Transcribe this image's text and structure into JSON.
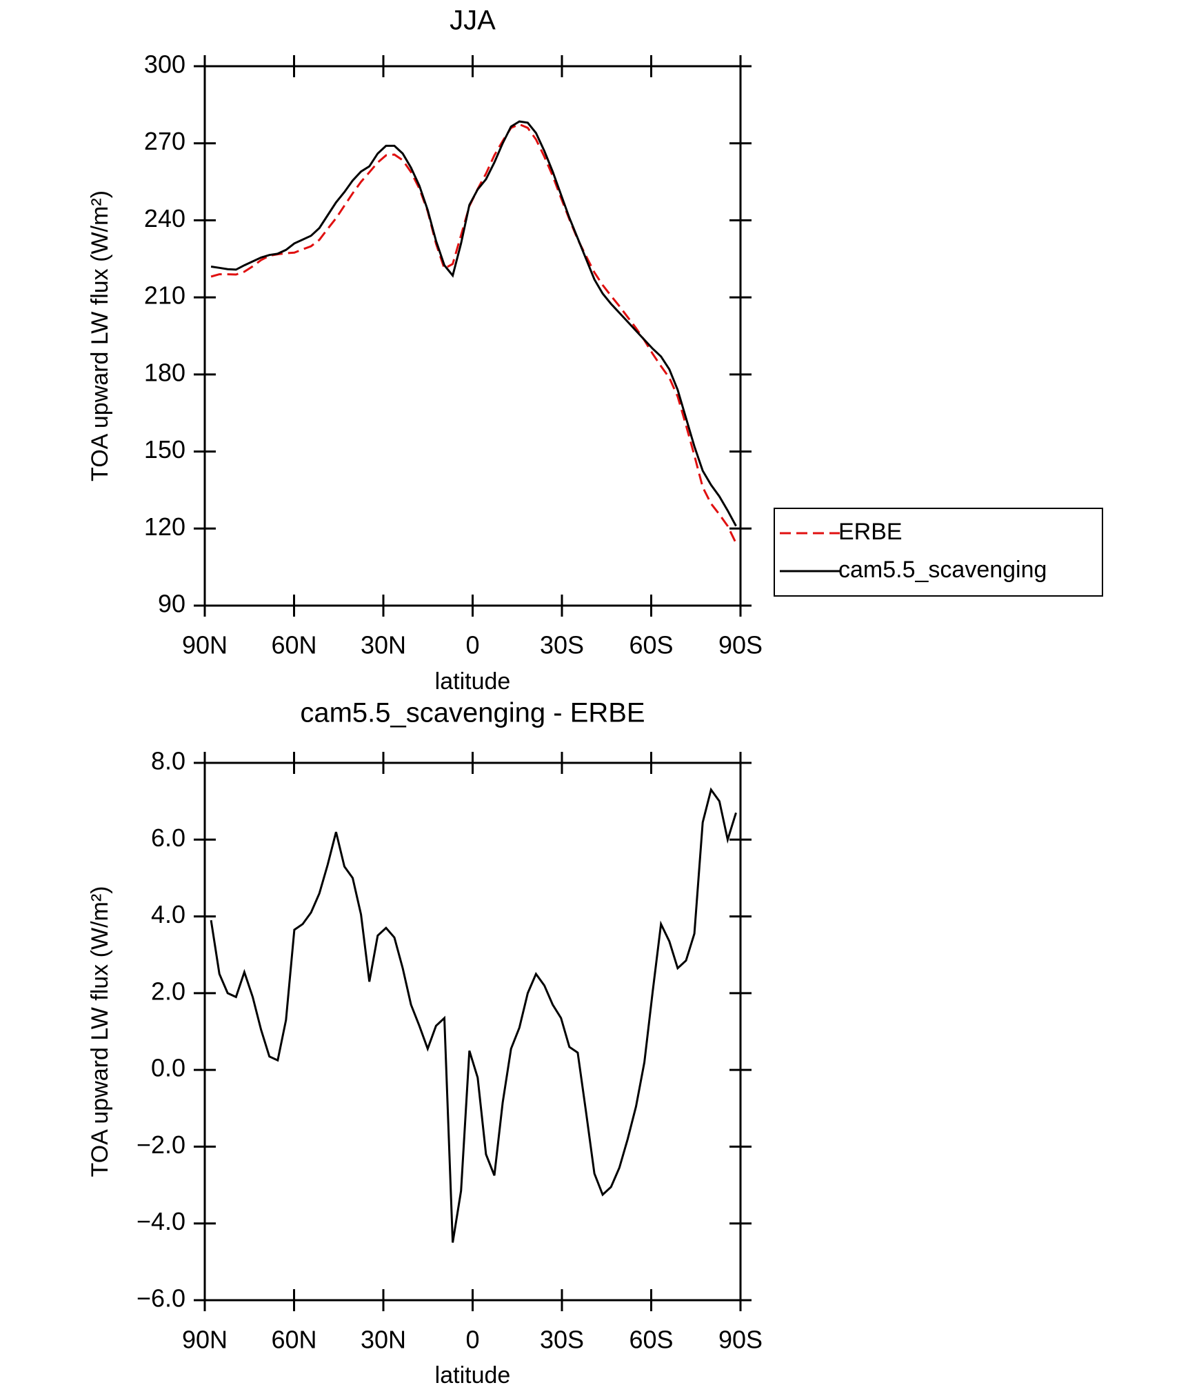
{
  "chart_data": [
    {
      "type": "line",
      "title": "JJA",
      "xlabel": "latitude",
      "ylabel": "TOA upward LW flux (W/m²)",
      "x": [
        87.9,
        85.1,
        82.3,
        79.5,
        76.7,
        73.9,
        71.1,
        68.3,
        65.5,
        62.7,
        59.9,
        57.1,
        54.3,
        51.5,
        48.7,
        45.9,
        43.1,
        40.3,
        37.5,
        34.7,
        31.9,
        29.1,
        26.3,
        23.5,
        20.7,
        17.9,
        15.1,
        12.3,
        9.5,
        6.7,
        3.9,
        1.1,
        -1.7,
        -4.5,
        -7.3,
        -10.1,
        -12.9,
        -15.7,
        -18.5,
        -21.3,
        -24.1,
        -26.9,
        -29.7,
        -32.5,
        -35.3,
        -38.1,
        -40.9,
        -43.7,
        -46.5,
        -49.3,
        -52.1,
        -54.9,
        -57.7,
        -60.5,
        -63.3,
        -66.1,
        -68.9,
        -71.7,
        -74.5,
        -77.3,
        -80.1,
        -82.9,
        -85.7,
        -88.5
      ],
      "series": [
        {
          "name": "ERBE",
          "color": "#e01010",
          "line_style": "dashed",
          "values": [
            218.1,
            219.0,
            219.0,
            218.9,
            220.0,
            222.1,
            224.5,
            226.2,
            226.8,
            227.2,
            227.4,
            228.7,
            229.9,
            232.4,
            236.7,
            240.8,
            245.7,
            250.5,
            255.0,
            258.7,
            262.5,
            265.3,
            265.6,
            263.4,
            258.8,
            252.4,
            243.5,
            230.9,
            221.2,
            223.0,
            234.2,
            245.5,
            252.2,
            258.2,
            265.3,
            270.9,
            276.0,
            277.4,
            276.0,
            271.5,
            264.8,
            257.3,
            248.7,
            240.4,
            232.6,
            226.1,
            219.7,
            214.8,
            210.6,
            206.6,
            202.3,
            198.0,
            193.3,
            188.0,
            183.2,
            178.7,
            171.4,
            160.2,
            148.5,
            136.1,
            129.7,
            125.5,
            121.0,
            114.3
          ]
        },
        {
          "name": "cam5.5_scavenging",
          "color": "#000000",
          "line_style": "solid",
          "values": [
            222,
            221.5,
            221,
            220.8,
            222.5,
            224,
            225.5,
            226.5,
            227,
            228.5,
            231,
            232.5,
            234,
            237,
            242,
            247,
            251,
            255.5,
            259,
            261,
            266,
            269,
            269,
            266,
            260.5,
            253.5,
            244,
            232,
            222.5,
            218.5,
            231,
            246,
            252,
            256,
            262.5,
            270,
            276.5,
            278.5,
            278,
            274,
            267,
            259,
            250,
            241,
            233,
            225,
            217,
            211.5,
            207.5,
            204,
            200.5,
            197,
            193.5,
            190,
            187,
            182,
            174,
            163,
            152,
            142.5,
            137,
            132.5,
            127,
            121
          ]
        }
      ],
      "xlim": [
        90,
        -90
      ],
      "xticks": [
        {
          "value": 90,
          "label": "90N"
        },
        {
          "value": 60,
          "label": "60N"
        },
        {
          "value": 30,
          "label": "30N"
        },
        0,
        {
          "value": -30,
          "label": "30S"
        },
        {
          "value": -60,
          "label": "60S"
        },
        {
          "value": -90,
          "label": "90S"
        }
      ],
      "ylim": [
        90,
        300
      ],
      "yticks": [
        90,
        120,
        150,
        180,
        210,
        240,
        270,
        300
      ],
      "legend": "right"
    },
    {
      "type": "line",
      "title": "cam5.5_scavenging - ERBE",
      "xlabel": "latitude",
      "ylabel": "TOA upward LW flux (W/m²)",
      "x": [
        87.9,
        85.1,
        82.3,
        79.5,
        76.7,
        73.9,
        71.1,
        68.3,
        65.5,
        62.7,
        59.9,
        57.1,
        54.3,
        51.5,
        48.7,
        45.9,
        43.1,
        40.3,
        37.5,
        34.7,
        31.9,
        29.1,
        26.3,
        23.5,
        20.7,
        17.9,
        15.1,
        12.3,
        9.5,
        6.7,
        3.9,
        1.1,
        -1.7,
        -4.5,
        -7.3,
        -10.1,
        -12.9,
        -15.7,
        -18.5,
        -21.3,
        -24.1,
        -26.9,
        -29.7,
        -32.5,
        -35.3,
        -38.1,
        -40.9,
        -43.7,
        -46.5,
        -49.3,
        -52.1,
        -54.9,
        -57.7,
        -60.5,
        -63.3,
        -66.1,
        -68.9,
        -71.7,
        -74.5,
        -77.3,
        -80.1,
        -82.9,
        -85.7,
        -88.5
      ],
      "color": "#000000",
      "values": [
        3.9,
        2.5,
        2.0,
        1.9,
        2.55,
        1.9,
        1.05,
        0.35,
        0.25,
        1.3,
        3.65,
        3.8,
        4.1,
        4.6,
        5.35,
        6.2,
        5.3,
        5.0,
        4.05,
        2.3,
        3.5,
        3.7,
        3.45,
        2.65,
        1.7,
        1.15,
        0.55,
        1.15,
        1.35,
        -4.5,
        -3.15,
        0.5,
        -0.2,
        -2.2,
        -2.75,
        -0.85,
        0.55,
        1.1,
        2.0,
        2.5,
        2.2,
        1.7,
        1.35,
        0.6,
        0.45,
        -1.1,
        -2.7,
        -3.25,
        -3.05,
        -2.55,
        -1.8,
        -0.95,
        0.2,
        2.05,
        3.8,
        3.35,
        2.65,
        2.85,
        3.55,
        6.45,
        7.3,
        7.0,
        6.0,
        6.7
      ],
      "xlim": [
        90,
        -90
      ],
      "xticks": [
        {
          "value": 90,
          "label": "90N"
        },
        {
          "value": 60,
          "label": "60N"
        },
        {
          "value": 30,
          "label": "30N"
        },
        0,
        {
          "value": -30,
          "label": "30S"
        },
        {
          "value": -60,
          "label": "60S"
        },
        {
          "value": -90,
          "label": "90S"
        }
      ],
      "ylim": [
        -6,
        8
      ],
      "yticks": [
        {
          "value": -6,
          "label": "−6.0"
        },
        {
          "value": -4,
          "label": "−4.0"
        },
        {
          "value": -2,
          "label": "−2.0"
        },
        {
          "value": 0,
          "label": "0.0"
        },
        {
          "value": 2,
          "label": "2.0"
        },
        {
          "value": 4,
          "label": "4.0"
        },
        {
          "value": 6,
          "label": "6.0"
        },
        {
          "value": 8,
          "label": "8.0"
        }
      ]
    }
  ]
}
